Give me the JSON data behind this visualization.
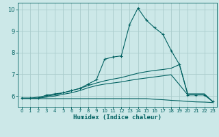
{
  "title": "",
  "xlabel": "Humidex (Indice chaleur)",
  "bg_color": "#cce8e8",
  "grid_color": "#aacccc",
  "line_color": "#006060",
  "xlim": [
    -0.5,
    23.5
  ],
  "ylim": [
    5.5,
    10.3
  ],
  "xticks": [
    0,
    1,
    2,
    3,
    4,
    5,
    6,
    7,
    8,
    9,
    10,
    11,
    12,
    13,
    14,
    15,
    16,
    17,
    18,
    19,
    20,
    21,
    22,
    23
  ],
  "yticks": [
    6,
    7,
    8,
    9,
    10
  ],
  "series": [
    {
      "x": [
        0,
        1,
        2,
        3,
        4,
        5,
        6,
        7,
        8,
        9,
        10,
        11,
        12,
        13,
        14,
        15,
        16,
        17,
        18,
        19,
        20,
        21,
        22,
        23
      ],
      "y": [
        5.9,
        5.9,
        5.9,
        6.05,
        6.1,
        6.15,
        6.25,
        6.35,
        6.55,
        6.75,
        7.7,
        7.8,
        7.85,
        9.3,
        10.05,
        9.5,
        9.15,
        8.85,
        8.1,
        7.45,
        6.05,
        6.05,
        6.05,
        5.75
      ],
      "marker": "+"
    },
    {
      "x": [
        0,
        1,
        2,
        3,
        4,
        5,
        6,
        7,
        8,
        9,
        10,
        11,
        12,
        13,
        14,
        15,
        16,
        17,
        18,
        19,
        20,
        21,
        22,
        23
      ],
      "y": [
        5.9,
        5.9,
        5.95,
        6.0,
        6.05,
        6.15,
        6.25,
        6.35,
        6.48,
        6.6,
        6.7,
        6.78,
        6.85,
        6.95,
        7.05,
        7.12,
        7.18,
        7.22,
        7.28,
        7.45,
        6.1,
        6.1,
        6.1,
        5.75
      ],
      "marker": null
    },
    {
      "x": [
        0,
        1,
        2,
        3,
        4,
        5,
        6,
        7,
        8,
        9,
        10,
        11,
        12,
        13,
        14,
        15,
        16,
        17,
        18,
        19,
        20,
        21,
        22,
        23
      ],
      "y": [
        5.9,
        5.9,
        5.9,
        5.95,
        6.0,
        6.08,
        6.15,
        6.25,
        6.38,
        6.48,
        6.55,
        6.6,
        6.65,
        6.72,
        6.78,
        6.83,
        6.88,
        6.93,
        6.98,
        6.52,
        6.05,
        6.05,
        6.05,
        5.75
      ],
      "marker": null
    },
    {
      "x": [
        0,
        1,
        2,
        3,
        4,
        5,
        6,
        7,
        8,
        9,
        10,
        11,
        12,
        13,
        14,
        15,
        16,
        17,
        18,
        19,
        20,
        21,
        22,
        23
      ],
      "y": [
        5.88,
        5.88,
        5.88,
        5.88,
        5.88,
        5.88,
        5.88,
        5.88,
        5.88,
        5.88,
        5.88,
        5.88,
        5.88,
        5.88,
        5.88,
        5.88,
        5.85,
        5.83,
        5.8,
        5.78,
        5.75,
        5.73,
        5.72,
        5.7
      ],
      "marker": null
    }
  ]
}
